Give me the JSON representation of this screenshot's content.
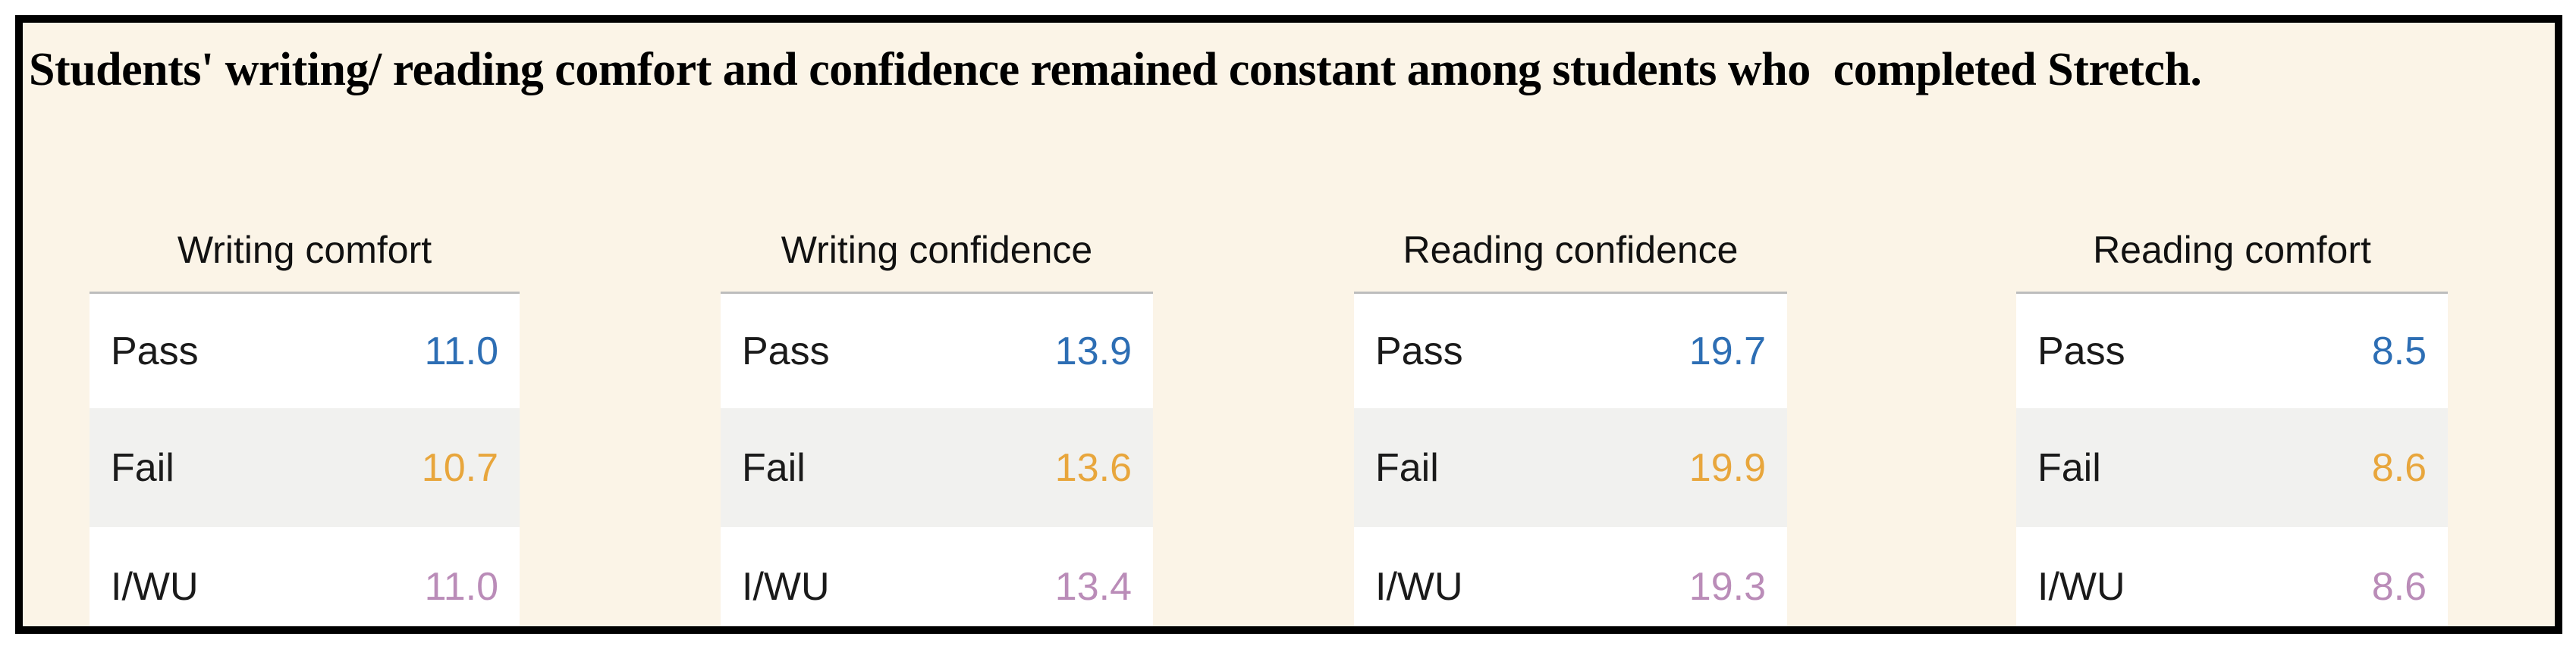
{
  "title": "Students' writing/ reading comfort and confidence remained constant among students who  completed Stretch.",
  "colors": {
    "background": "#FBF4E7",
    "separator": "#BDBDBD",
    "row_alt": "#F1F1EF",
    "pass": "#2D6EB4",
    "fail": "#E8A63C",
    "iwu": "#BA8CB8"
  },
  "tables": [
    {
      "title": "Writing comfort",
      "rows": [
        {
          "label": "Pass",
          "value": "11.0"
        },
        {
          "label": "Fail",
          "value": "10.7"
        },
        {
          "label": "I/WU",
          "value": "11.0"
        }
      ]
    },
    {
      "title": "Writing confidence",
      "rows": [
        {
          "label": "Pass",
          "value": "13.9"
        },
        {
          "label": "Fail",
          "value": "13.6"
        },
        {
          "label": "I/WU",
          "value": "13.4"
        }
      ]
    },
    {
      "title": "Reading confidence",
      "rows": [
        {
          "label": "Pass",
          "value": "19.7"
        },
        {
          "label": "Fail",
          "value": "19.9"
        },
        {
          "label": "I/WU",
          "value": "19.3"
        }
      ]
    },
    {
      "title": "Reading comfort",
      "rows": [
        {
          "label": "Pass",
          "value": "8.5"
        },
        {
          "label": "Fail",
          "value": "8.6"
        },
        {
          "label": "I/WU",
          "value": "8.6"
        }
      ]
    }
  ],
  "chart_data": {
    "type": "table",
    "title": "Students' writing/ reading comfort and confidence remained constant among students who  completed Stretch.",
    "categories": [
      "Pass",
      "Fail",
      "I/WU"
    ],
    "series": [
      {
        "name": "Writing comfort",
        "values": [
          11.0,
          10.7,
          11.0
        ]
      },
      {
        "name": "Writing confidence",
        "values": [
          13.9,
          13.6,
          13.4
        ]
      },
      {
        "name": "Reading confidence",
        "values": [
          19.7,
          19.9,
          19.3
        ]
      },
      {
        "name": "Reading comfort",
        "values": [
          8.5,
          8.6,
          8.6
        ]
      }
    ],
    "layout_hints": {
      "grid": false,
      "legend": "none",
      "value_colors_by_category": {
        "Pass": "#2D6EB4",
        "Fail": "#E8A63C",
        "I/WU": "#BA8CB8"
      },
      "row_striping": [
        "#FFFFFF",
        "#F1F1EF",
        "#FFFFFF"
      ]
    }
  }
}
